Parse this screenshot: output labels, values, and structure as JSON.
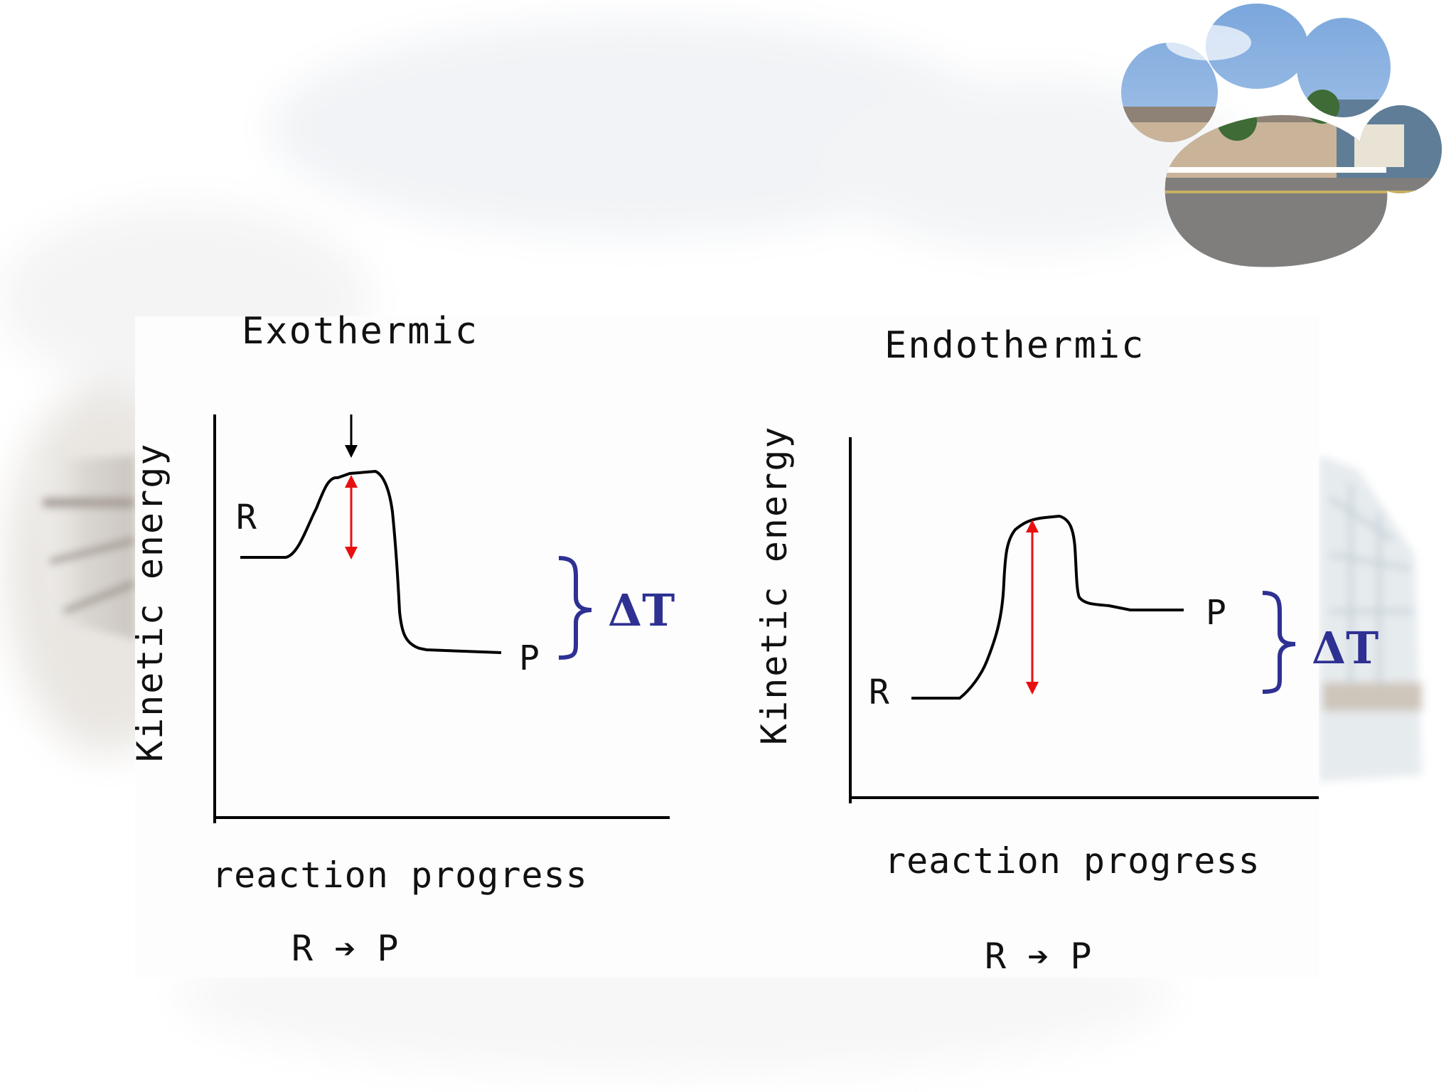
{
  "left": {
    "title": "Exothermic",
    "ylabel": "Kinetic energy",
    "xlabel": "reaction progress",
    "reactant": "R",
    "product": "P",
    "equation": "R ➔ P",
    "delta": "ΔT"
  },
  "right": {
    "title": "Endothermic",
    "ylabel": "Kinetic energy",
    "xlabel": "reaction progress",
    "reactant": "R",
    "product": "P",
    "equation": "R ➔ P",
    "delta": "ΔT"
  },
  "colors": {
    "curve": "#000000",
    "activation_arrow": "#e81010",
    "delta_brace": "#2e3192"
  }
}
